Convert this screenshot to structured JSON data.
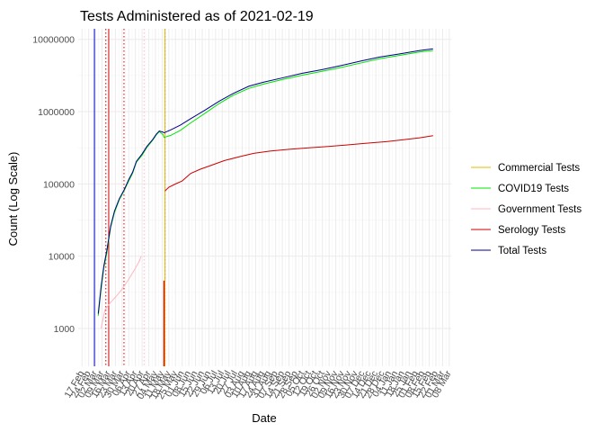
{
  "chart_data": {
    "type": "line",
    "title": "Tests Administered as of 2021-02-19",
    "xlabel": "Date",
    "ylabel": "Count (Log Scale)",
    "y_scale": "log10",
    "ylim": [
      300,
      14000000
    ],
    "xlim": [
      "2020-02-13",
      "2021-03-10"
    ],
    "grid": true,
    "legend_position": "right",
    "y_ticks": [
      1000,
      10000,
      100000,
      1000000,
      10000000
    ],
    "y_tick_labels": [
      "1000",
      "10000",
      "100000",
      "1000000",
      "10000000"
    ],
    "x_ticks": [
      "2020-02-17",
      "2020-02-24",
      "2020-03-02",
      "2020-03-09",
      "2020-03-16",
      "2020-03-23",
      "2020-03-30",
      "2020-04-06",
      "2020-04-13",
      "2020-04-20",
      "2020-04-27",
      "2020-05-04",
      "2020-05-11",
      "2020-05-18",
      "2020-05-25",
      "2020-06-01",
      "2020-06-08",
      "2020-06-15",
      "2020-06-22",
      "2020-06-29",
      "2020-07-06",
      "2020-07-13",
      "2020-07-20",
      "2020-07-27",
      "2020-08-03",
      "2020-08-10",
      "2020-08-17",
      "2020-08-24",
      "2020-08-31",
      "2020-09-07",
      "2020-09-14",
      "2020-09-21",
      "2020-09-28",
      "2020-10-05",
      "2020-10-12",
      "2020-10-19",
      "2020-10-26",
      "2020-11-02",
      "2020-11-09",
      "2020-11-16",
      "2020-11-23",
      "2020-11-30",
      "2020-12-07",
      "2020-12-14",
      "2020-12-21",
      "2020-12-28",
      "2021-01-04",
      "2021-01-11",
      "2021-01-18",
      "2021-01-25",
      "2021-02-01",
      "2021-02-08",
      "2021-02-15",
      "2021-02-22",
      "2021-03-01",
      "2021-03-08"
    ],
    "x_tick_labels": [
      "17 Feb",
      "24 Feb",
      "02 Mar",
      "09 Mar",
      "16 Mar",
      "23 Mar",
      "30 Mar",
      "06 Apr",
      "13 Apr",
      "20 Apr",
      "27 Apr",
      "04 May",
      "11 May",
      "18 May",
      "25 May",
      "01 Jun",
      "08 Jun",
      "15 Jun",
      "22 Jun",
      "29 Jun",
      "06 Jul",
      "13 Jul",
      "20 Jul",
      "27 Jul",
      "03 Aug",
      "10 Aug",
      "17 Aug",
      "24 Aug",
      "31 Aug",
      "07 Sep",
      "14 Sep",
      "21 Sep",
      "28 Sep",
      "05 Oct",
      "12 Oct",
      "19 Oct",
      "26 Oct",
      "02 Nov",
      "09 Nov",
      "16 Nov",
      "23 Nov",
      "30 Nov",
      "07 Dec",
      "14 Dec",
      "21 Dec",
      "28 Dec",
      "04 Jan",
      "11 Jan",
      "18 Jan",
      "25 Jan",
      "01 Feb",
      "08 Feb",
      "15 Feb",
      "22 Feb",
      "01 Mar",
      "08 Mar"
    ],
    "series": [
      {
        "name": "Commercial Tests",
        "color": "#e6b800",
        "values": [
          [
            "2020-05-14",
            300
          ],
          [
            "2020-05-14",
            14000000
          ]
        ]
      },
      {
        "name": "COVID19 Tests",
        "color": "#00e600",
        "values": [
          [
            "2020-03-05",
            1500
          ],
          [
            "2020-03-08",
            3500
          ],
          [
            "2020-03-11",
            7000
          ],
          [
            "2020-03-14",
            11000
          ],
          [
            "2020-03-18",
            25000
          ],
          [
            "2020-03-22",
            40000
          ],
          [
            "2020-03-27",
            60000
          ],
          [
            "2020-04-01",
            80000
          ],
          [
            "2020-04-06",
            110000
          ],
          [
            "2020-04-10",
            140000
          ],
          [
            "2020-04-14",
            200000
          ],
          [
            "2020-04-20",
            250000
          ],
          [
            "2020-04-25",
            320000
          ],
          [
            "2020-05-01",
            400000
          ],
          [
            "2020-05-05",
            480000
          ],
          [
            "2020-05-08",
            530000
          ],
          [
            "2020-05-12",
            480000
          ],
          [
            "2020-05-13",
            440000
          ],
          [
            "2020-05-20",
            470000
          ],
          [
            "2020-05-30",
            550000
          ],
          [
            "2020-06-10",
            700000
          ],
          [
            "2020-06-25",
            950000
          ],
          [
            "2020-07-10",
            1300000
          ],
          [
            "2020-07-25",
            1700000
          ],
          [
            "2020-08-10",
            2100000
          ],
          [
            "2020-08-25",
            2400000
          ],
          [
            "2020-09-15",
            2800000
          ],
          [
            "2020-10-05",
            3200000
          ],
          [
            "2020-10-25",
            3600000
          ],
          [
            "2020-11-15",
            4100000
          ],
          [
            "2020-12-05",
            4700000
          ],
          [
            "2020-12-25",
            5400000
          ],
          [
            "2021-01-15",
            6000000
          ],
          [
            "2021-02-05",
            6700000
          ],
          [
            "2021-02-19",
            7000000
          ]
        ]
      },
      {
        "name": "Government Tests",
        "color": "#ffb6c1",
        "values": [
          [
            "2020-03-08",
            1000
          ],
          [
            "2020-03-12",
            1800
          ],
          [
            "2020-03-18",
            2300
          ],
          [
            "2020-03-24",
            2800
          ],
          [
            "2020-03-30",
            3500
          ],
          [
            "2020-04-06",
            4800
          ],
          [
            "2020-04-12",
            6500
          ],
          [
            "2020-04-17",
            8500
          ],
          [
            "2020-04-19",
            10000
          ]
        ]
      },
      {
        "name": "Serology Tests",
        "color": "#cc0000",
        "values": [
          [
            "2020-05-14",
            80000
          ],
          [
            "2020-05-18",
            90000
          ],
          [
            "2020-05-25",
            100000
          ],
          [
            "2020-06-01",
            110000
          ],
          [
            "2020-06-10",
            140000
          ],
          [
            "2020-06-20",
            160000
          ],
          [
            "2020-07-01",
            180000
          ],
          [
            "2020-07-15",
            210000
          ],
          [
            "2020-08-01",
            240000
          ],
          [
            "2020-08-15",
            265000
          ],
          [
            "2020-09-01",
            285000
          ],
          [
            "2020-09-20",
            300000
          ],
          [
            "2020-10-10",
            315000
          ],
          [
            "2020-11-01",
            330000
          ],
          [
            "2020-11-20",
            345000
          ],
          [
            "2020-12-10",
            365000
          ],
          [
            "2021-01-01",
            385000
          ],
          [
            "2021-01-20",
            410000
          ],
          [
            "2021-02-05",
            435000
          ],
          [
            "2021-02-19",
            465000
          ]
        ]
      },
      {
        "name": "Total Tests",
        "color": "#00008b",
        "values": [
          [
            "2020-03-05",
            1600
          ],
          [
            "2020-03-08",
            3800
          ],
          [
            "2020-03-11",
            7500
          ],
          [
            "2020-03-14",
            12000
          ],
          [
            "2020-03-18",
            26000
          ],
          [
            "2020-03-22",
            42000
          ],
          [
            "2020-03-27",
            62000
          ],
          [
            "2020-04-01",
            82000
          ],
          [
            "2020-04-06",
            115000
          ],
          [
            "2020-04-10",
            145000
          ],
          [
            "2020-04-14",
            205000
          ],
          [
            "2020-04-20",
            260000
          ],
          [
            "2020-04-25",
            330000
          ],
          [
            "2020-05-01",
            410000
          ],
          [
            "2020-05-05",
            490000
          ],
          [
            "2020-05-08",
            540000
          ],
          [
            "2020-05-12",
            520000
          ],
          [
            "2020-05-13",
            510000
          ],
          [
            "2020-05-20",
            560000
          ],
          [
            "2020-05-30",
            650000
          ],
          [
            "2020-06-10",
            800000
          ],
          [
            "2020-06-25",
            1050000
          ],
          [
            "2020-07-10",
            1400000
          ],
          [
            "2020-07-25",
            1800000
          ],
          [
            "2020-08-10",
            2250000
          ],
          [
            "2020-08-25",
            2550000
          ],
          [
            "2020-09-15",
            2950000
          ],
          [
            "2020-10-05",
            3400000
          ],
          [
            "2020-10-25",
            3800000
          ],
          [
            "2020-11-15",
            4350000
          ],
          [
            "2020-12-05",
            5000000
          ],
          [
            "2020-12-25",
            5700000
          ],
          [
            "2021-01-15",
            6300000
          ],
          [
            "2021-02-05",
            7000000
          ],
          [
            "2021-02-19",
            7400000
          ]
        ]
      }
    ],
    "reference_lines": [
      {
        "x": "2020-03-01",
        "color": "#0000cd",
        "style": "solid"
      },
      {
        "x": "2020-03-13",
        "color": "#cc0000",
        "style": "dotted"
      },
      {
        "x": "2020-03-16",
        "color": "#cc0000",
        "style": "solid"
      },
      {
        "x": "2020-04-01",
        "color": "#cc0000",
        "style": "dotted"
      },
      {
        "x": "2020-04-22",
        "color": "#ffb6c1",
        "style": "dotted"
      },
      {
        "x": "2020-05-14",
        "color": "#cc0000",
        "style": "dotted"
      }
    ],
    "bars": [
      {
        "x": "2020-05-13",
        "from": 300,
        "to": 4600,
        "color": "#cc0000"
      }
    ]
  }
}
